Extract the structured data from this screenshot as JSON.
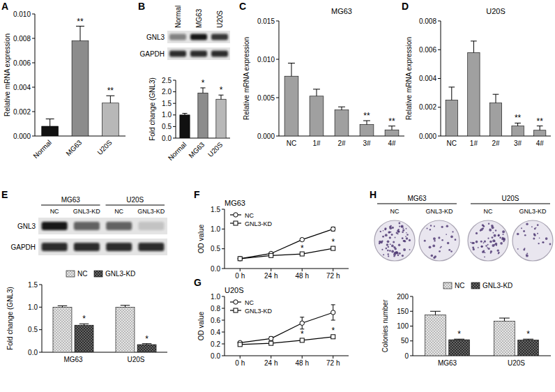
{
  "chart_data": [
    {
      "panel": "A",
      "type": "bar",
      "y_label": "Relative mRNA expression",
      "categories": [
        "Normal",
        "MG63",
        "U20S"
      ],
      "values": [
        0.0008,
        0.0078,
        0.0027
      ],
      "errors": [
        0.0006,
        0.0012,
        0.0006
      ],
      "significance": [
        null,
        "**",
        "**"
      ],
      "colors": [
        "#111111",
        "#8c8c8c",
        "#b8b8b8"
      ],
      "ylim": [
        0,
        0.01
      ],
      "yticks": [
        {
          "value": 0,
          "label": "0.000"
        },
        0.002,
        0.004,
        0.006,
        0.008,
        {
          "value": 0.01,
          "label": "0.010"
        }
      ]
    },
    {
      "panel": "B",
      "type": "bar",
      "blot": {
        "lanes": [
          "Normal",
          "MG63",
          "U20S"
        ],
        "rows": [
          "GNL3",
          "GAPDH"
        ]
      },
      "y_label": "Fold change (GNL3)",
      "categories": [
        "Normal",
        "MG63",
        "U20S"
      ],
      "values": [
        1.0,
        1.95,
        1.68
      ],
      "errors": [
        0.07,
        0.22,
        0.18
      ],
      "significance": [
        null,
        "*",
        "*"
      ],
      "colors": [
        "#111111",
        "#8c8c8c",
        "#b8b8b8"
      ],
      "ylim": [
        0,
        2.5
      ],
      "yticks": [
        {
          "value": 0,
          "label": "0.0"
        },
        0.5,
        {
          "value": 1,
          "label": "1.0"
        },
        1.5,
        {
          "value": 2,
          "label": "2.0"
        },
        2.5
      ]
    },
    {
      "panel": "C",
      "type": "bar",
      "title": "MG63",
      "y_label": "Relative mRNA expression",
      "categories": [
        "NC",
        "1#",
        "2#",
        "3#",
        "4#"
      ],
      "values": [
        0.0078,
        0.0052,
        0.0034,
        0.0015,
        0.0008
      ],
      "errors": [
        0.0017,
        0.0009,
        0.0004,
        0.0005,
        0.0005
      ],
      "significance": [
        null,
        null,
        null,
        "**",
        "**"
      ],
      "colors": [
        "#a0a0a0",
        "#a0a0a0",
        "#a0a0a0",
        "#a0a0a0",
        "#a0a0a0"
      ],
      "ylim": [
        0,
        0.015
      ],
      "yticks": [
        {
          "value": 0,
          "label": "0.000"
        },
        0.005,
        {
          "value": 0.01,
          "label": "0.010"
        },
        0.015
      ]
    },
    {
      "panel": "D",
      "type": "bar",
      "title": "U20S",
      "y_label": "Relative mRNA expression",
      "categories": [
        "NC",
        "1#",
        "2#",
        "3#",
        "4#"
      ],
      "values": [
        0.0025,
        0.0058,
        0.0023,
        0.0007,
        0.0004
      ],
      "errors": [
        0.0009,
        0.0008,
        0.0006,
        0.0002,
        0.0003
      ],
      "significance": [
        null,
        null,
        null,
        "**",
        "**"
      ],
      "colors": [
        "#a0a0a0",
        "#a0a0a0",
        "#a0a0a0",
        "#a0a0a0",
        "#a0a0a0"
      ],
      "ylim": [
        0,
        0.008
      ],
      "yticks": [
        {
          "value": 0,
          "label": "0.000"
        },
        0.002,
        0.004,
        0.006,
        0.008
      ]
    },
    {
      "panel": "E",
      "type": "bar",
      "blot": {
        "groups": [
          "MG63",
          "U20S"
        ],
        "lanes": [
          "NC",
          "GNL3-KD",
          "NC",
          "GNL3-KD"
        ],
        "rows": [
          "GNL3",
          "GAPDH"
        ]
      },
      "y_label": "Fold change (GNL3)",
      "categories": [
        "MG63",
        "U20S"
      ],
      "series": [
        {
          "name": "NC",
          "color": "#e6e6e6",
          "values": [
            1.0,
            1.0
          ],
          "errors": [
            0.03,
            0.04
          ]
        },
        {
          "name": "GNL3-KD",
          "color": "#2e2e2e",
          "values": [
            0.6,
            0.17
          ],
          "errors": [
            0.03,
            0.02
          ],
          "significance": [
            "*",
            "*"
          ]
        }
      ],
      "legend": "top",
      "ylim": [
        0,
        1.5
      ],
      "yticks": [
        {
          "value": 0,
          "label": "0.0"
        },
        0.5,
        {
          "value": 1,
          "label": "1.0"
        },
        1.5
      ]
    },
    {
      "panel": "F",
      "type": "line",
      "title": "MG63",
      "y_label": "OD value",
      "categories": [
        "0 h",
        "24 h",
        "48 h",
        "72 h"
      ],
      "series": [
        {
          "name": "NC",
          "color": "#000000",
          "marker": "circle",
          "values": [
            0.25,
            0.38,
            0.73,
            1.0
          ],
          "errors": [
            0.02,
            0.02,
            0.03,
            0.05
          ]
        },
        {
          "name": "GNL3-KD",
          "color": "#000000",
          "marker": "square",
          "values": [
            0.25,
            0.33,
            0.37,
            0.51
          ],
          "errors": [
            0.02,
            0.01,
            0.02,
            0.03
          ],
          "significance": [
            null,
            null,
            "*",
            "*"
          ]
        }
      ],
      "legend": "top-left",
      "ylim": [
        0,
        1.5
      ],
      "yticks": [
        {
          "value": 0,
          "label": "0.0"
        },
        0.5,
        {
          "value": 1,
          "label": "1.0"
        },
        1.5
      ]
    },
    {
      "panel": "G",
      "type": "line",
      "title": "U20S",
      "y_label": "OD value",
      "categories": [
        "0 h",
        "24 h",
        "48 h",
        "72 h"
      ],
      "series": [
        {
          "name": "NC",
          "color": "#000000",
          "marker": "circle",
          "values": [
            0.22,
            0.29,
            0.55,
            0.73
          ],
          "errors": [
            0.02,
            0.03,
            0.1,
            0.13
          ]
        },
        {
          "name": "GNL3-KD",
          "color": "#000000",
          "marker": "square",
          "values": [
            0.19,
            0.21,
            0.26,
            0.32
          ],
          "errors": [
            0.01,
            0.01,
            0.02,
            0.02
          ],
          "significance": [
            null,
            null,
            "*",
            "*"
          ]
        }
      ],
      "legend": "top-left",
      "ylim": [
        0,
        1
      ],
      "yticks": [
        {
          "value": 0,
          "label": "0.0"
        },
        0.2,
        0.4,
        0.6,
        0.8,
        {
          "value": 1,
          "label": "1.0"
        }
      ]
    },
    {
      "panel": "H",
      "type": "bar",
      "dishes": {
        "groups": [
          "MG63",
          "U20S"
        ],
        "lanes": [
          "NC",
          "GNL3-KD",
          "NC",
          "GNL3-KD"
        ]
      },
      "y_label": "Colonies number",
      "categories": [
        "MG63",
        "U20S"
      ],
      "series": [
        {
          "name": "NC",
          "color": "#e6e6e6",
          "values": [
            138,
            117
          ],
          "errors": [
            12,
            10
          ]
        },
        {
          "name": "GNL3-KD",
          "color": "#2e2e2e",
          "values": [
            54,
            53
          ],
          "errors": [
            2,
            3
          ],
          "significance": [
            "*",
            "*"
          ]
        }
      ],
      "legend": "top",
      "ylim": [
        0,
        200
      ],
      "yticks": [
        0,
        50,
        100,
        150,
        200
      ]
    }
  ]
}
